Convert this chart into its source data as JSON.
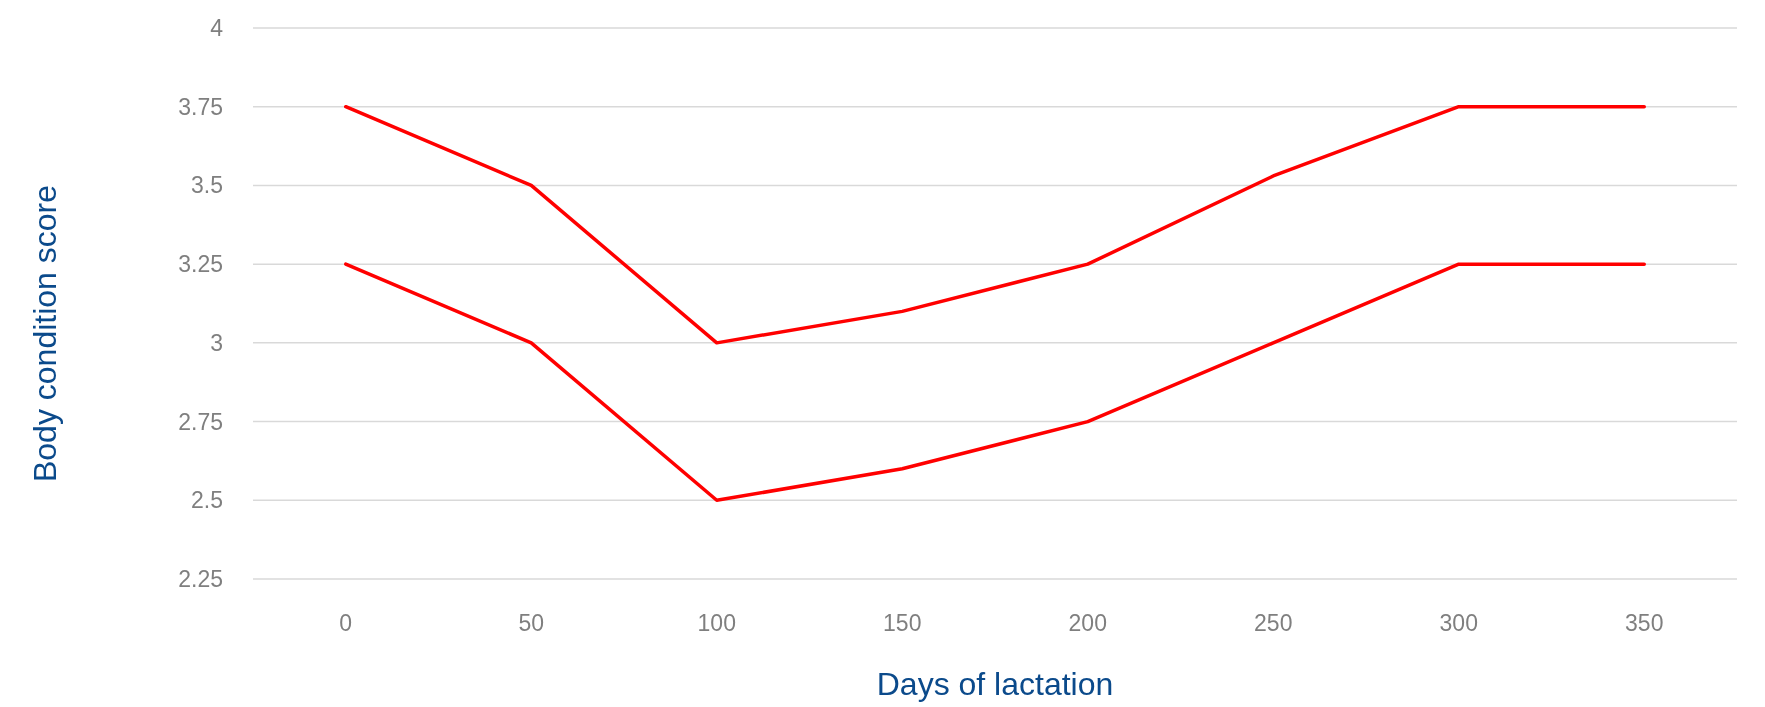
{
  "chart_data": {
    "type": "line",
    "xlabel": "Days of lactation",
    "ylabel": "Body condition score",
    "categories": [
      "0",
      "50",
      "100",
      "150",
      "200",
      "250",
      "300",
      "350"
    ],
    "series": [
      {
        "color": "#ff0000",
        "values": [
          3.75,
          3.5,
          3.0,
          3.1,
          3.25,
          3.53,
          3.75,
          3.75
        ]
      },
      {
        "color": "#ff0000",
        "values": [
          3.25,
          3.0,
          2.5,
          2.6,
          2.75,
          3.0,
          3.25,
          3.25
        ]
      }
    ],
    "ylim": [
      2.25,
      4
    ],
    "yticks": [
      2.25,
      2.5,
      2.75,
      3,
      3.25,
      3.5,
      3.75,
      4
    ],
    "grid": "y",
    "marker": "none",
    "line_style": "solid"
  }
}
